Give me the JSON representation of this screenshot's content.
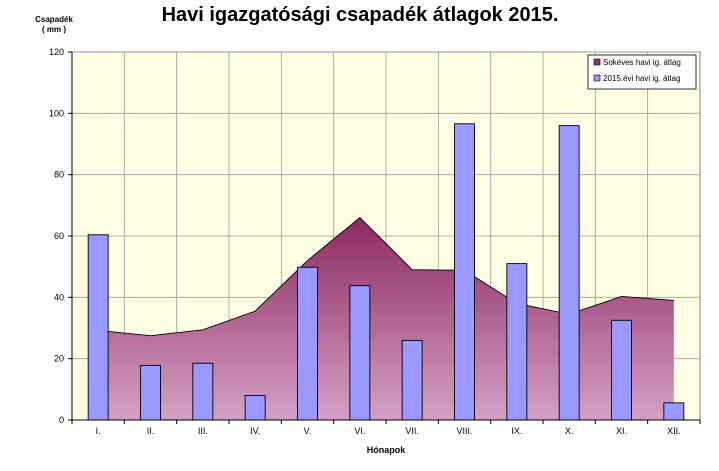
{
  "chart_data": {
    "type": "bar",
    "title": "Havi igazgatósági csapadék átlagok 2015.",
    "ylabel": [
      "Csapadék",
      "( mm )"
    ],
    "xlabel": "Hónapok",
    "categories": [
      "I.",
      "II.",
      "III.",
      "IV.",
      "V.",
      "VI.",
      "VII.",
      "VIII.",
      "IX.",
      "X.",
      "XI.",
      "XII."
    ],
    "ylim": [
      0,
      120
    ],
    "yticks": [
      0,
      20,
      40,
      60,
      80,
      100,
      120
    ],
    "grid": true,
    "legend_position": "top-right",
    "series": [
      {
        "name": "Sokéves havi ig. átlag",
        "type": "area",
        "color": "#993366",
        "values": [
          29.2,
          27.5,
          29.4,
          35.5,
          52.0,
          66.0,
          49.0,
          48.8,
          38.0,
          34.5,
          40.3,
          39.0
        ]
      },
      {
        "name": "2015.évi havi ig. átlag",
        "type": "bar",
        "color": "#9999ff",
        "values": [
          60.4,
          17.8,
          18.5,
          8.0,
          49.8,
          43.8,
          25.9,
          96.6,
          51.0,
          96.0,
          32.5,
          5.6
        ]
      }
    ]
  }
}
